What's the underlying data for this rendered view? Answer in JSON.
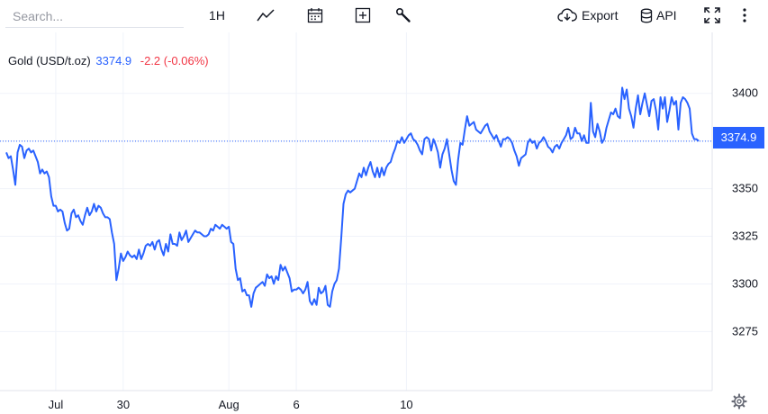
{
  "toolbar": {
    "search_placeholder": "Search...",
    "interval": "1H",
    "export_label": "Export",
    "api_label": "API",
    "icons": [
      "line-chart-icon",
      "calendar-icon",
      "add-indicator-icon",
      "wrench-icon",
      "cloud-download-icon",
      "database-icon",
      "fullscreen-icon",
      "more-icon"
    ]
  },
  "legend": {
    "symbol": "Gold (USD/t.oz)",
    "price": "3374.9",
    "change": "-2.2 (-0.06%)"
  },
  "price_tag": "3374.9",
  "colors": {
    "line": "#2962ff",
    "negative": "#f23645",
    "grid": "#f0f3fa"
  },
  "chart_data": {
    "type": "line",
    "y_ticks": [
      3275,
      3300,
      3325,
      3350,
      3375,
      3400
    ],
    "y_tick_labels": [
      "3275",
      "3300",
      "3325",
      "3350",
      "3400"
    ],
    "ylim": [
      3244,
      3432
    ],
    "x_tick_labels": [
      "Jul",
      "30",
      "Aug",
      "6",
      "10"
    ],
    "x_tick_index": [
      22,
      52,
      99,
      129,
      178
    ],
    "last_value": 3374.9,
    "grid": true,
    "series": [
      {
        "values": [
          3369,
          3366,
          3367,
          3360,
          3352,
          3369,
          3373,
          3372,
          3366,
          3370,
          3371,
          3369,
          3370,
          3367,
          3364,
          3358,
          3360,
          3358,
          3359,
          3356,
          3346,
          3341,
          3341,
          3338,
          3339,
          3338,
          3332,
          3328,
          3329,
          3337,
          3339,
          3335,
          3336,
          3333,
          3331,
          3336,
          3340,
          3336,
          3338,
          3342,
          3338,
          3341,
          3340,
          3337,
          3335,
          3335,
          3334,
          3327,
          3321,
          3302,
          3308,
          3316,
          3312,
          3314,
          3317,
          3315,
          3314,
          3315,
          3313,
          3318,
          3313,
          3316,
          3320,
          3321,
          3320,
          3322,
          3318,
          3322,
          3323,
          3318,
          3315,
          3321,
          3317,
          3326,
          3321,
          3321,
          3320,
          3327,
          3323,
          3325,
          3328,
          3322,
          3324,
          3326,
          3328,
          3327,
          3327,
          3326,
          3325,
          3325,
          3326,
          3329,
          3328,
          3331,
          3330,
          3329,
          3331,
          3330,
          3329,
          3330,
          3322,
          3321,
          3308,
          3302,
          3303,
          3296,
          3297,
          3294,
          3294,
          3288,
          3295,
          3298,
          3299,
          3300,
          3301,
          3299,
          3305,
          3303,
          3304,
          3300,
          3304,
          3302,
          3310,
          3307,
          3309,
          3306,
          3303,
          3296,
          3297,
          3297,
          3298,
          3297,
          3295,
          3297,
          3301,
          3291,
          3289,
          3292,
          3289,
          3298,
          3295,
          3296,
          3299,
          3289,
          3288,
          3296,
          3300,
          3302,
          3308,
          3324,
          3342,
          3347,
          3349,
          3348,
          3349,
          3350,
          3354,
          3358,
          3356,
          3361,
          3357,
          3361,
          3364,
          3359,
          3356,
          3361,
          3356,
          3361,
          3357,
          3361,
          3363,
          3364,
          3368,
          3371,
          3375,
          3374,
          3377,
          3374,
          3376,
          3378,
          3379,
          3376,
          3375,
          3373,
          3370,
          3368,
          3376,
          3377,
          3376,
          3370,
          3376,
          3373,
          3369,
          3361,
          3368,
          3371,
          3376,
          3368,
          3360,
          3354,
          3352,
          3365,
          3374,
          3373,
          3381,
          3388,
          3383,
          3384,
          3385,
          3381,
          3380,
          3379,
          3381,
          3383,
          3384,
          3380,
          3378,
          3376,
          3378,
          3375,
          3372,
          3376,
          3376,
          3377,
          3376,
          3374,
          3370,
          3367,
          3362,
          3366,
          3367,
          3368,
          3374,
          3376,
          3374,
          3375,
          3371,
          3374,
          3375,
          3377,
          3375,
          3372,
          3371,
          3369,
          3372,
          3373,
          3371,
          3374,
          3376,
          3378,
          3382,
          3376,
          3377,
          3382,
          3379,
          3379,
          3375,
          3378,
          3374,
          3374,
          3395,
          3380,
          3377,
          3384,
          3380,
          3374,
          3376,
          3382,
          3386,
          3390,
          3389,
          3392,
          3388,
          3387,
          3403,
          3397,
          3402,
          3392,
          3388,
          3382,
          3392,
          3399,
          3389,
          3395,
          3400,
          3394,
          3388,
          3396,
          3397,
          3391,
          3381,
          3398,
          3392,
          3398,
          3385,
          3391,
          3398,
          3394,
          3396,
          3381,
          3395,
          3398,
          3397,
          3395,
          3392,
          3379,
          3376,
          3376,
          3375
        ]
      }
    ]
  }
}
